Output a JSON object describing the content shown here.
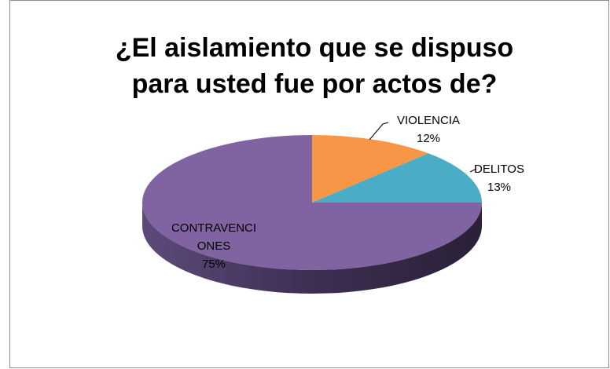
{
  "chart_data": {
    "type": "pie",
    "title": "¿El aislamiento que se dispuso para usted fue por actos de?",
    "categories": [
      "VIOLENCIA",
      "DELITOS",
      "CONTRAVENCIONES"
    ],
    "values": [
      12,
      13,
      75
    ],
    "value_labels": [
      "12%",
      "13%",
      "75%"
    ],
    "colors": [
      "#f79646",
      "#4bacc6",
      "#8064a2"
    ]
  }
}
